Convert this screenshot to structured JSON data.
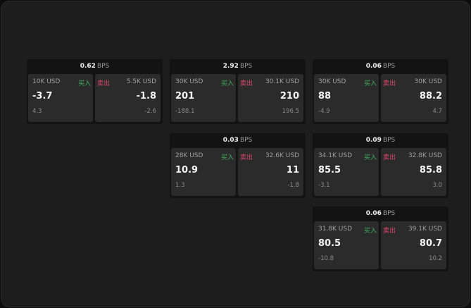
{
  "unit": "BPS",
  "buy_label": "买入",
  "sell_label": "卖出",
  "cards": [
    {
      "bps": "0.62",
      "buy": {
        "size": "10K USD",
        "price": "-3.7",
        "change": "4.3"
      },
      "sell": {
        "size": "5.5K USD",
        "price": "-1.8",
        "change": "-2.6"
      }
    },
    {
      "bps": "2.92",
      "buy": {
        "size": "30K USD",
        "price": "201",
        "change": "-188.1"
      },
      "sell": {
        "size": "30.1K USD",
        "price": "210",
        "change": "196.5"
      }
    },
    {
      "bps": "0.06",
      "buy": {
        "size": "30K USD",
        "price": "88",
        "change": "-4.9"
      },
      "sell": {
        "size": "30K USD",
        "price": "88.2",
        "change": "4.7"
      }
    },
    {
      "bps": "0.03",
      "buy": {
        "size": "28K USD",
        "price": "10.9",
        "change": "1.3"
      },
      "sell": {
        "size": "32.6K USD",
        "price": "11",
        "change": "-1.8"
      }
    },
    {
      "bps": "0.09",
      "buy": {
        "size": "34.1K USD",
        "price": "85.5",
        "change": "-3.1"
      },
      "sell": {
        "size": "32.8K USD",
        "price": "85.8",
        "change": "3.0"
      }
    },
    {
      "bps": "0.06",
      "buy": {
        "size": "31.8K USD",
        "price": "80.5",
        "change": "-10.8"
      },
      "sell": {
        "size": "39.1K USD",
        "price": "80.7",
        "change": "10.2"
      }
    }
  ]
}
